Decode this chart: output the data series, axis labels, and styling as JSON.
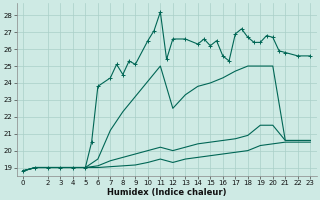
{
  "title": "",
  "xlabel": "Humidex (Indice chaleur)",
  "bg_color": "#ceeae4",
  "grid_color": "#aacfc8",
  "line_color": "#006655",
  "xlim": [
    -0.5,
    23.5
  ],
  "ylim": [
    18.5,
    28.7
  ],
  "yticks": [
    19,
    20,
    21,
    22,
    23,
    24,
    25,
    26,
    27,
    28
  ],
  "xticks": [
    0,
    2,
    3,
    4,
    5,
    6,
    7,
    8,
    9,
    10,
    11,
    12,
    13,
    14,
    15,
    16,
    17,
    18,
    19,
    20,
    21,
    22,
    23
  ],
  "line1_x": [
    0,
    1,
    2,
    3,
    4,
    5,
    5.5,
    6,
    7,
    7.5,
    8,
    8.5,
    9,
    10,
    10.5,
    11,
    11.5,
    12,
    13,
    14,
    14.5,
    15,
    15.5,
    16,
    16.5,
    17,
    17.5,
    18,
    18.5,
    19,
    19.5,
    20,
    20.5,
    21,
    22,
    23
  ],
  "line1_y": [
    18.8,
    19.0,
    19.0,
    19.0,
    19.0,
    19.0,
    20.5,
    23.8,
    24.3,
    25.1,
    24.5,
    25.3,
    25.1,
    26.5,
    27.1,
    28.2,
    25.4,
    26.6,
    26.6,
    26.3,
    26.6,
    26.2,
    26.5,
    25.6,
    25.3,
    26.9,
    27.2,
    26.7,
    26.4,
    26.4,
    26.8,
    26.7,
    25.9,
    25.8,
    25.6,
    25.6
  ],
  "line2_x": [
    0,
    1,
    2,
    3,
    4,
    5,
    6,
    7,
    8,
    9,
    10,
    11,
    12,
    13,
    14,
    15,
    16,
    17,
    18,
    19,
    20,
    21,
    22,
    23
  ],
  "line2_y": [
    18.8,
    19.0,
    19.0,
    19.0,
    19.0,
    19.0,
    19.5,
    21.2,
    22.3,
    23.2,
    24.1,
    25.0,
    22.5,
    23.3,
    23.8,
    24.0,
    24.3,
    24.7,
    25.0,
    25.0,
    25.0,
    20.6,
    20.6,
    20.6
  ],
  "line3_x": [
    0,
    1,
    2,
    3,
    4,
    5,
    6,
    7,
    8,
    9,
    10,
    11,
    12,
    13,
    14,
    15,
    16,
    17,
    18,
    19,
    20,
    21,
    22,
    23
  ],
  "line3_y": [
    18.8,
    19.0,
    19.0,
    19.0,
    19.0,
    19.0,
    19.1,
    19.4,
    19.6,
    19.8,
    20.0,
    20.2,
    20.0,
    20.2,
    20.4,
    20.5,
    20.6,
    20.7,
    20.9,
    21.5,
    21.5,
    20.6,
    20.6,
    20.6
  ],
  "line4_x": [
    0,
    1,
    2,
    3,
    4,
    5,
    6,
    7,
    8,
    9,
    10,
    11,
    12,
    13,
    14,
    15,
    16,
    17,
    18,
    19,
    20,
    21,
    22,
    23
  ],
  "line4_y": [
    18.8,
    19.0,
    19.0,
    19.0,
    19.0,
    19.0,
    19.0,
    19.05,
    19.1,
    19.15,
    19.3,
    19.5,
    19.3,
    19.5,
    19.6,
    19.7,
    19.8,
    19.9,
    20.0,
    20.3,
    20.4,
    20.5,
    20.5,
    20.5
  ],
  "marker_x": [
    5,
    6,
    7,
    7.5,
    8,
    10,
    11,
    14,
    15,
    15.5,
    16,
    17,
    18,
    19,
    20,
    21
  ],
  "marker_y": [
    19.0,
    23.8,
    24.3,
    25.1,
    24.5,
    26.5,
    28.2,
    26.3,
    26.2,
    26.5,
    25.6,
    26.9,
    26.7,
    26.4,
    26.7,
    25.8
  ]
}
